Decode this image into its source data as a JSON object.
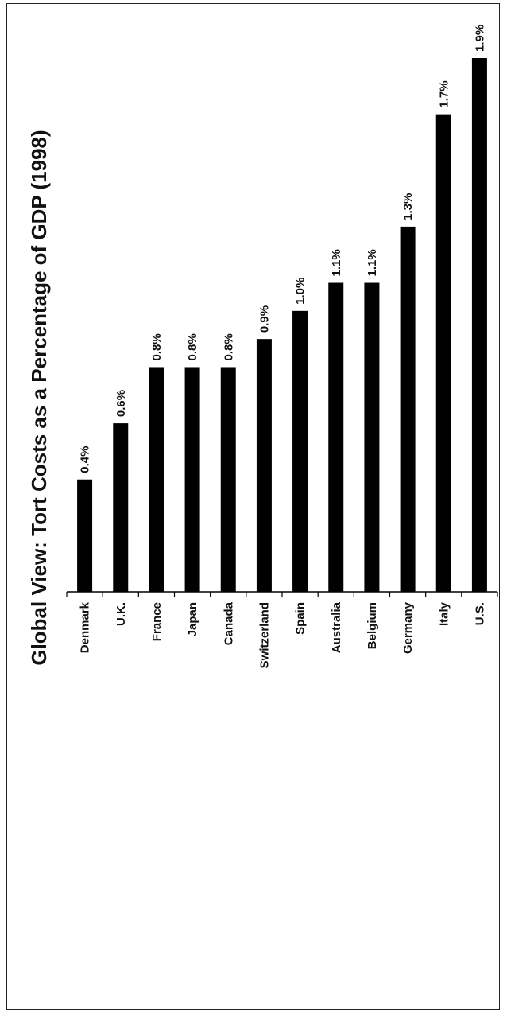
{
  "chart_data": {
    "type": "bar",
    "orientation": "vertical bars, figure rotated 90 degrees",
    "title": "Global View:  Tort Costs as a Percentage of GDP (1998)",
    "categories": [
      "Denmark",
      "U.K.",
      "France",
      "Japan",
      "Canada",
      "Switzerland",
      "Spain",
      "Australia",
      "Belgium",
      "Germany",
      "Italy",
      "U.S."
    ],
    "values": [
      0.4,
      0.6,
      0.8,
      0.8,
      0.8,
      0.9,
      1.0,
      1.1,
      1.1,
      1.3,
      1.7,
      1.9
    ],
    "data_labels": [
      "0.4%",
      "0.6%",
      "0.8%",
      "0.8%",
      "0.8%",
      "0.9%",
      "1.0%",
      "1.1%",
      "1.1%",
      "1.3%",
      "1.7%",
      "1.9%"
    ],
    "unit": "%",
    "ylim": [
      0,
      2.0
    ],
    "grid": false,
    "legend": "none",
    "bar_color": "#000000"
  }
}
